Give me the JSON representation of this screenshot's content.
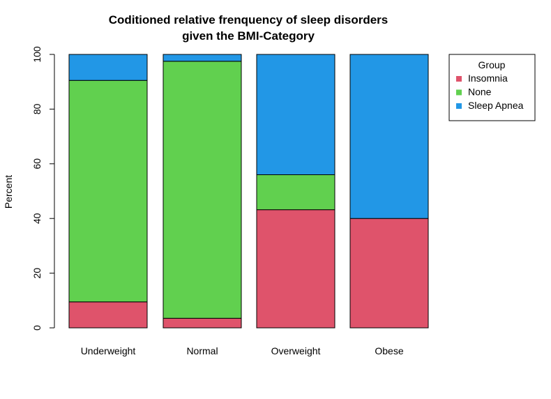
{
  "chart_data": {
    "type": "bar",
    "stacked": true,
    "title_lines": [
      "Coditioned relative frenquency of sleep disorders",
      "given the BMI-Category"
    ],
    "xlabel": "",
    "ylabel": "Percent",
    "ylim": [
      0,
      100
    ],
    "yticks": [
      "0",
      "20",
      "40",
      "60",
      "80",
      "100"
    ],
    "categories": [
      "Underweight",
      "Normal",
      "Overweight",
      "Obese"
    ],
    "series": [
      {
        "name": "Insomnia",
        "color": "#DF536B",
        "values": [
          9.5,
          3.5,
          43.2,
          40.0
        ]
      },
      {
        "name": "None",
        "color": "#61D04F",
        "values": [
          81.0,
          94.0,
          12.8,
          0.0
        ]
      },
      {
        "name": "Sleep Apnea",
        "color": "#2297E6",
        "values": [
          9.5,
          2.5,
          44.0,
          60.0
        ]
      }
    ],
    "legend": {
      "title": "Group",
      "position": "top-right"
    },
    "grid": false
  }
}
